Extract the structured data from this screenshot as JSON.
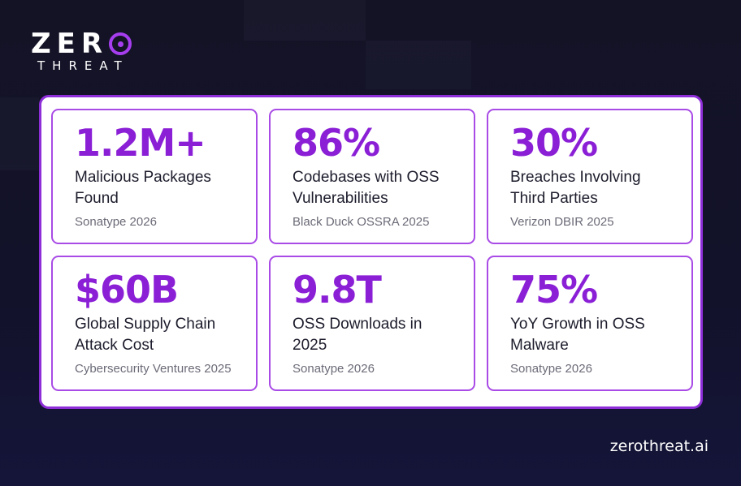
{
  "brand": {
    "logo_word": "ZER",
    "logo_sub": "THREAT",
    "accent_color": "#8a1fd6",
    "site": "zerothreat.ai"
  },
  "stats": [
    {
      "value": "1.2M+",
      "label": "Malicious Packages Found",
      "source": "Sonatype 2026"
    },
    {
      "value": "86%",
      "label": "Codebases with OSS Vulnerabilities",
      "source": "Black Duck OSSRA 2025"
    },
    {
      "value": "30%",
      "label": "Breaches Involving Third Parties",
      "source": "Verizon DBIR 2025"
    },
    {
      "value": "$60B",
      "label": "Global Supply Chain Attack Cost",
      "source": "Cybersecurity Ventures 2025"
    },
    {
      "value": "9.8T",
      "label": "OSS Downloads in 2025",
      "source": "Sonatype 2026"
    },
    {
      "value": "75%",
      "label": "YoY Growth in OSS Malware",
      "source": "Sonatype 2026"
    }
  ]
}
